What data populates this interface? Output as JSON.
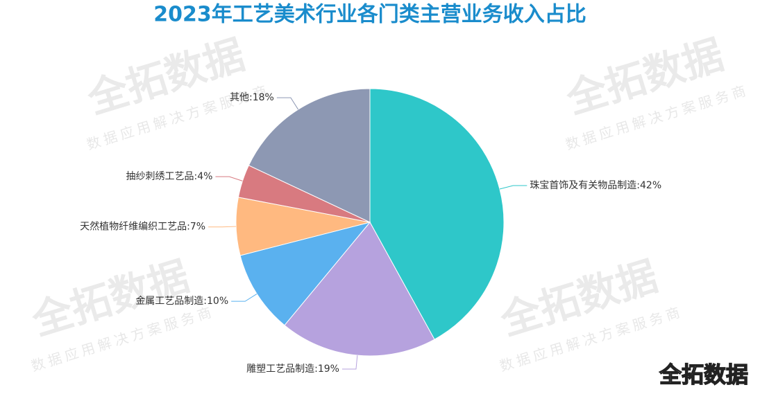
{
  "chart_data": {
    "type": "pie",
    "title": "2023年工艺美术行业各门类主营业务收入占比",
    "values": [
      42,
      19,
      10,
      7,
      4,
      18
    ],
    "value_labels": [
      "珠宝首饰及有关物品制造:42%",
      "雕塑工艺品制造:19%",
      "金属工艺品制造:10%",
      "天然植物纤维编织工艺品:7%",
      "抽纱刺绣工艺品:4%",
      "其他:18%"
    ],
    "colors": [
      "#2ec7c9",
      "#b6a2de",
      "#5ab1ef",
      "#ffb980",
      "#d87a80",
      "#8d98b3"
    ]
  },
  "watermark": {
    "brand": "全拓数据",
    "slogan": "数据应用解决方案服务商"
  },
  "logo": "全拓数据"
}
